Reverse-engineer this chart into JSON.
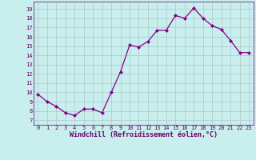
{
  "x": [
    0,
    1,
    2,
    3,
    4,
    5,
    6,
    7,
    8,
    9,
    10,
    11,
    12,
    13,
    14,
    15,
    16,
    17,
    18,
    19,
    20,
    21,
    22,
    23
  ],
  "y": [
    9.8,
    9.0,
    8.5,
    7.8,
    7.5,
    8.2,
    8.2,
    7.8,
    10.0,
    12.2,
    15.1,
    14.9,
    15.5,
    16.7,
    16.7,
    18.3,
    18.0,
    19.1,
    18.0,
    17.2,
    16.8,
    15.6,
    14.3,
    14.3
  ],
  "line_color": "#880088",
  "marker": "D",
  "marker_size": 2.0,
  "bg_color": "#c8eeee",
  "grid_color": "#b0c8c8",
  "xlabel": "Windchill (Refroidissement éolien,°C)",
  "ylabel_ticks": [
    7,
    8,
    9,
    10,
    11,
    12,
    13,
    14,
    15,
    16,
    17,
    18,
    19
  ],
  "xtick_labels": [
    "0",
    "1",
    "2",
    "3",
    "4",
    "5",
    "6",
    "7",
    "8",
    "9",
    "10",
    "11",
    "12",
    "13",
    "14",
    "15",
    "16",
    "17",
    "18",
    "19",
    "20",
    "21",
    "22",
    "23"
  ],
  "ylim": [
    6.5,
    19.8
  ],
  "xlim": [
    -0.5,
    23.5
  ],
  "xlabel_color": "#660066",
  "tick_color": "#660066",
  "tick_fontsize": 5.0,
  "xlabel_fontsize": 6.0,
  "line_width": 0.9
}
